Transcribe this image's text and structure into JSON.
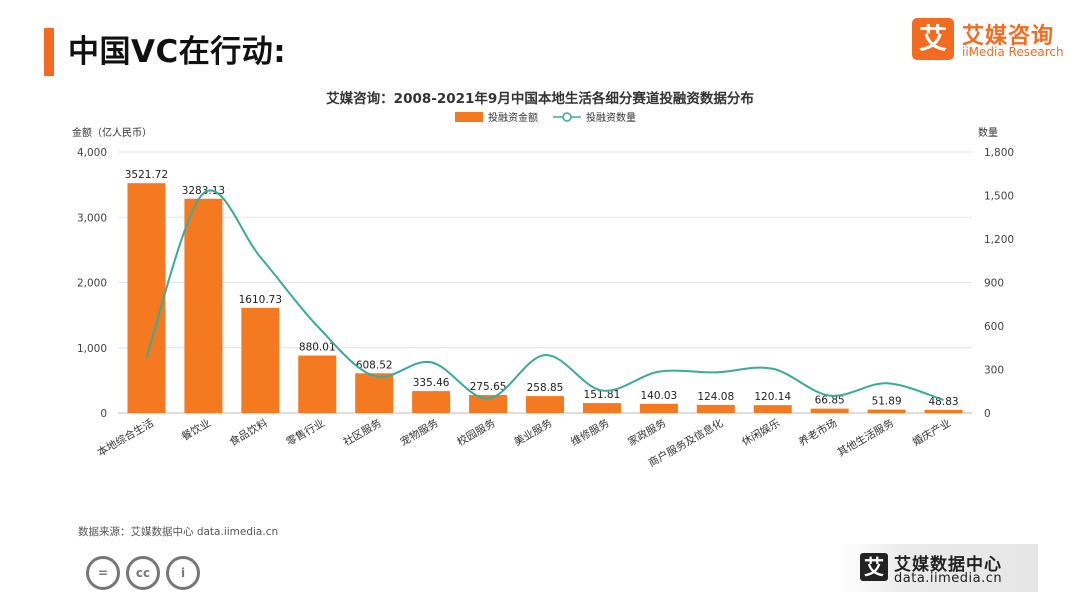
{
  "slide": {
    "title": "中国VC在行动:"
  },
  "logo": {
    "glyph": "艾",
    "cn": "艾媒咨询",
    "en": "iiMedia Research"
  },
  "chart_data": {
    "type": "bar",
    "title": "艾媒咨询：2008-2021年9月中国本地生活各细分赛道投融资数据分布",
    "ylabel_left": "金额（亿人民币）",
    "ylabel_right": "数量",
    "categories": [
      "本地综合生活",
      "餐饮业",
      "食品饮料",
      "零售行业",
      "社区服务",
      "宠物服务",
      "校园服务",
      "美业服务",
      "维修服务",
      "家政服务",
      "商户服务及信息化",
      "休闲娱乐",
      "养老市场",
      "其他生活服务",
      "婚庆产业"
    ],
    "series": [
      {
        "name": "投融资金额",
        "type": "bar",
        "axis": "left",
        "color": "#f47920",
        "values": [
          3521.72,
          3283.13,
          1610.73,
          880.01,
          608.52,
          335.46,
          275.65,
          258.85,
          151.81,
          140.03,
          124.08,
          120.14,
          66.85,
          51.89,
          48.83
        ],
        "labels": [
          "3521.72",
          "3283.13",
          "1610.73",
          "880.01",
          "608.52",
          "335.46",
          "275.65",
          "258.85",
          "151.81",
          "140.03",
          "124.08",
          "120.14",
          "66.85",
          "51.89",
          "48.83"
        ]
      },
      {
        "name": "投融资数量",
        "type": "line",
        "axis": "right",
        "color": "#3aab9a",
        "values": [
          385,
          1515,
          1075,
          600,
          255,
          350,
          100,
          400,
          155,
          285,
          280,
          305,
          120,
          205,
          90
        ]
      }
    ],
    "ylim_left": [
      0,
      4000
    ],
    "yticks_left": [
      "0",
      "1,000",
      "2,000",
      "3,000",
      "4,000"
    ],
    "ylim_right": [
      0,
      1800
    ],
    "yticks_right": [
      "0",
      "300",
      "600",
      "900",
      "1,200",
      "1,500",
      "1,800"
    ],
    "grid": true,
    "legend_position": "top-center"
  },
  "footer": {
    "source": "数据来源：艾媒数据中心 data.iimedia.cn",
    "cc_labels": [
      "=",
      "cc",
      "i"
    ],
    "banner_glyph": "艾",
    "banner_cn": "艾媒数据中心",
    "banner_url": "data.iimedia.cn"
  }
}
